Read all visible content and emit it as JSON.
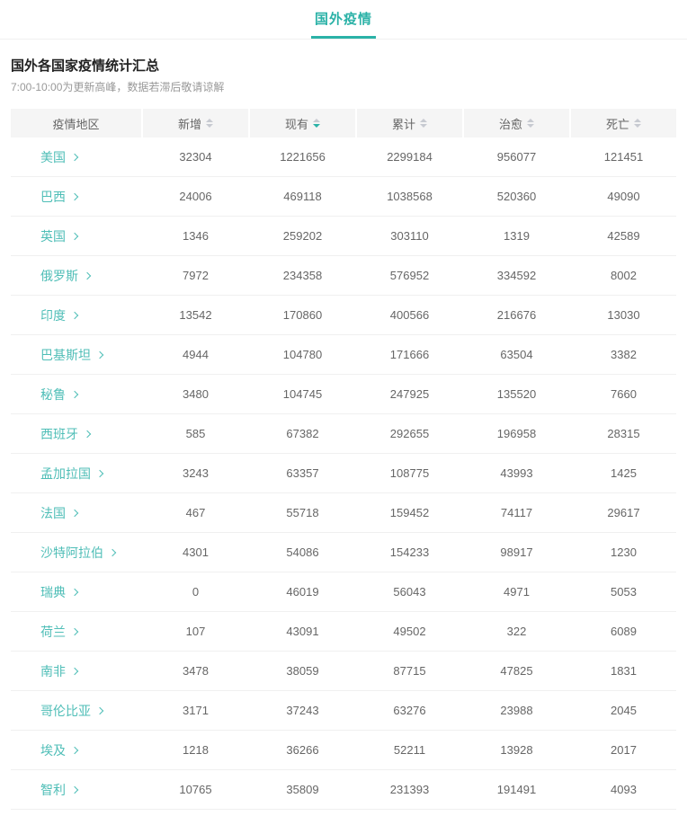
{
  "tab": {
    "label": "国外疫情"
  },
  "section": {
    "title": "国外各国家疫情统计汇总",
    "subtitle": "7:00-10:00为更新高峰，数据若滞后敬请谅解"
  },
  "icons": {
    "region_arrow": "chevron-right",
    "sort_asc": "caret-up",
    "sort_desc": "caret-down"
  },
  "colors": {
    "accent": "#2bb2a7",
    "link": "#4fbeb7",
    "title_text": "#222222",
    "body_text": "#666666",
    "subtitle_text": "#999999",
    "header_bg": "#f5f5f5",
    "divider": "#f0f0f0",
    "caret": "#c7cad1"
  },
  "table": {
    "col_keys": [
      "region",
      "new",
      "current",
      "total",
      "cured",
      "deaths"
    ],
    "columns": [
      {
        "label": "疫情地区",
        "sortable": false,
        "sort": "none"
      },
      {
        "label": "新增",
        "sortable": true,
        "sort": "none"
      },
      {
        "label": "现有",
        "sortable": true,
        "sort": "desc"
      },
      {
        "label": "累计",
        "sortable": true,
        "sort": "none"
      },
      {
        "label": "治愈",
        "sortable": true,
        "sort": "none"
      },
      {
        "label": "死亡",
        "sortable": true,
        "sort": "none"
      }
    ],
    "active_sort": {
      "column": "现有",
      "direction": "desc"
    },
    "rows": [
      {
        "region": "美国",
        "new": "32304",
        "current": "1221656",
        "total": "2299184",
        "cured": "956077",
        "deaths": "121451"
      },
      {
        "region": "巴西",
        "new": "24006",
        "current": "469118",
        "total": "1038568",
        "cured": "520360",
        "deaths": "49090"
      },
      {
        "region": "英国",
        "new": "1346",
        "current": "259202",
        "total": "303110",
        "cured": "1319",
        "deaths": "42589"
      },
      {
        "region": "俄罗斯",
        "new": "7972",
        "current": "234358",
        "total": "576952",
        "cured": "334592",
        "deaths": "8002"
      },
      {
        "region": "印度",
        "new": "13542",
        "current": "170860",
        "total": "400566",
        "cured": "216676",
        "deaths": "13030"
      },
      {
        "region": "巴基斯坦",
        "new": "4944",
        "current": "104780",
        "total": "171666",
        "cured": "63504",
        "deaths": "3382"
      },
      {
        "region": "秘鲁",
        "new": "3480",
        "current": "104745",
        "total": "247925",
        "cured": "135520",
        "deaths": "7660"
      },
      {
        "region": "西班牙",
        "new": "585",
        "current": "67382",
        "total": "292655",
        "cured": "196958",
        "deaths": "28315"
      },
      {
        "region": "孟加拉国",
        "new": "3243",
        "current": "63357",
        "total": "108775",
        "cured": "43993",
        "deaths": "1425"
      },
      {
        "region": "法国",
        "new": "467",
        "current": "55718",
        "total": "159452",
        "cured": "74117",
        "deaths": "29617"
      },
      {
        "region": "沙特阿拉伯",
        "new": "4301",
        "current": "54086",
        "total": "154233",
        "cured": "98917",
        "deaths": "1230"
      },
      {
        "region": "瑞典",
        "new": "0",
        "current": "46019",
        "total": "56043",
        "cured": "4971",
        "deaths": "5053"
      },
      {
        "region": "荷兰",
        "new": "107",
        "current": "43091",
        "total": "49502",
        "cured": "322",
        "deaths": "6089"
      },
      {
        "region": "南非",
        "new": "3478",
        "current": "38059",
        "total": "87715",
        "cured": "47825",
        "deaths": "1831"
      },
      {
        "region": "哥伦比亚",
        "new": "3171",
        "current": "37243",
        "total": "63276",
        "cured": "23988",
        "deaths": "2045"
      },
      {
        "region": "埃及",
        "new": "1218",
        "current": "36266",
        "total": "52211",
        "cured": "13928",
        "deaths": "2017"
      },
      {
        "region": "智利",
        "new": "10765",
        "current": "35809",
        "total": "231393",
        "cured": "191491",
        "deaths": "4093"
      }
    ]
  }
}
